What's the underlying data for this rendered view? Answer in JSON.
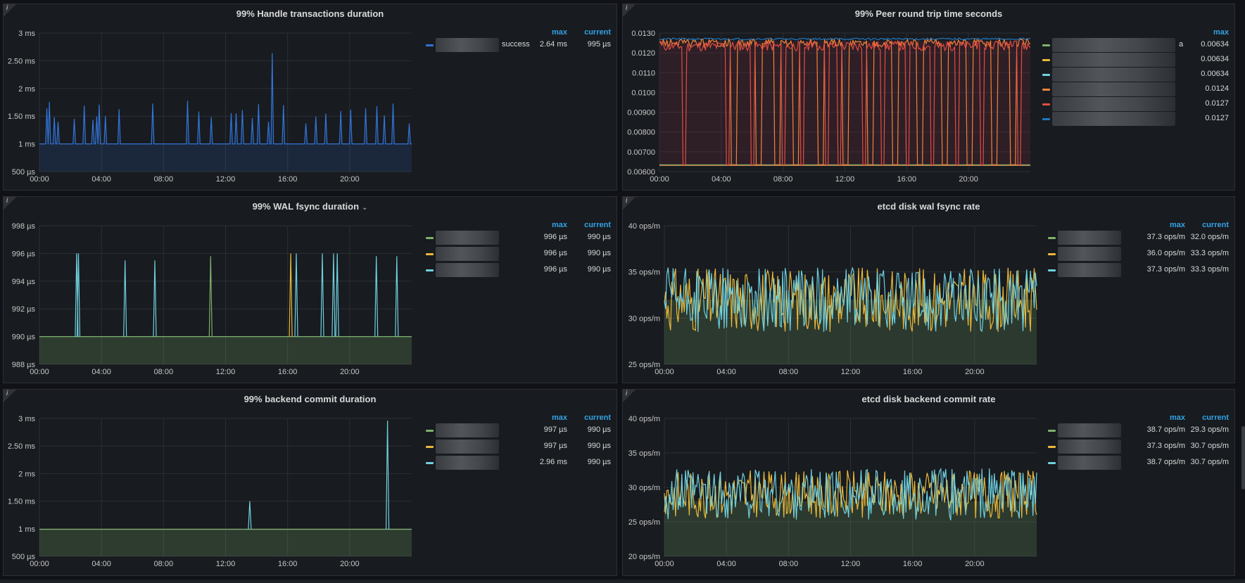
{
  "panels": [
    {
      "id": "p1",
      "title": "99% Handle transactions duration",
      "has_chevron": false,
      "box": [
        4,
        5,
        873,
        266
      ],
      "plot": [
        55,
        46,
        584,
        243
      ],
      "yticks": [
        "3 ms",
        "2.50 ms",
        "2 ms",
        "1.50 ms",
        "1 ms",
        "500 µs"
      ],
      "xticks": [
        "00:00",
        "04:00",
        "08:00",
        "12:00",
        "16:00",
        "20:00"
      ],
      "legend_headers": [
        "max",
        "current"
      ],
      "legend_rows": [
        {
          "name": "success",
          "color": "#3274d9",
          "max": "2.64 ms",
          "current": "995 µs"
        }
      ]
    },
    {
      "id": "p2",
      "title": "99% Peer round trip time seconds",
      "has_chevron": false,
      "box": [
        884,
        5,
        871,
        266
      ],
      "plot": [
        936,
        46,
        1463,
        243
      ],
      "yticks": [
        "0.0130",
        "0.0120",
        "0.0110",
        "0.0100",
        "0.00900",
        "0.00800",
        "0.00700",
        "0.00600"
      ],
      "xticks": [
        "00:00",
        "04:00",
        "08:00",
        "12:00",
        "16:00",
        "20:00"
      ],
      "legend_headers": [
        "max"
      ],
      "legend_rows": [
        {
          "name": "a",
          "color": "#7eb26d",
          "max": "0.00634"
        },
        {
          "name": "",
          "color": "#eab839",
          "max": "0.00634"
        },
        {
          "name": "",
          "color": "#6ed0e0",
          "max": "0.00634"
        },
        {
          "name": "",
          "color": "#ef843c",
          "max": "0.0124"
        },
        {
          "name": "",
          "color": "#e24d42",
          "max": "0.0127"
        },
        {
          "name": "",
          "color": "#1f78c1",
          "max": "0.0127"
        }
      ]
    },
    {
      "id": "p3",
      "title": "99% WAL fsync duration",
      "has_chevron": true,
      "box": [
        4,
        279,
        873,
        266
      ],
      "plot": [
        55,
        320,
        584,
        517
      ],
      "yticks": [
        "998 µs",
        "996 µs",
        "994 µs",
        "992 µs",
        "990 µs",
        "988 µs"
      ],
      "xticks": [
        "00:00",
        "04:00",
        "08:00",
        "12:00",
        "16:00",
        "20:00"
      ],
      "legend_headers": [
        "max",
        "current"
      ],
      "legend_rows": [
        {
          "name": "",
          "color": "#7eb26d",
          "max": "996 µs",
          "current": "990 µs"
        },
        {
          "name": "",
          "color": "#eab839",
          "max": "996 µs",
          "current": "990 µs"
        },
        {
          "name": "",
          "color": "#6ed0e0",
          "max": "996 µs",
          "current": "990 µs"
        }
      ]
    },
    {
      "id": "p4",
      "title": "etcd disk wal fsync rate",
      "has_chevron": false,
      "box": [
        884,
        279,
        871,
        266
      ],
      "plot": [
        943,
        320,
        1472,
        517
      ],
      "yticks": [
        "40 ops/m",
        "35 ops/m",
        "30 ops/m",
        "25 ops/m"
      ],
      "xticks": [
        "00:00",
        "04:00",
        "08:00",
        "12:00",
        "16:00",
        "20:00"
      ],
      "legend_headers": [
        "max",
        "current"
      ],
      "legend_rows": [
        {
          "name": "",
          "color": "#7eb26d",
          "max": "37.3 ops/m",
          "current": "32.0 ops/m"
        },
        {
          "name": "",
          "color": "#eab839",
          "max": "36.0 ops/m",
          "current": "33.3 ops/m"
        },
        {
          "name": "",
          "color": "#6ed0e0",
          "max": "37.3 ops/m",
          "current": "33.3 ops/m"
        }
      ]
    },
    {
      "id": "p5",
      "title": "99% backend commit duration",
      "has_chevron": false,
      "box": [
        4,
        553,
        873,
        266
      ],
      "plot": [
        55,
        594,
        584,
        790
      ],
      "yticks": [
        "3 ms",
        "2.50 ms",
        "2 ms",
        "1.50 ms",
        "1 ms",
        "500 µs"
      ],
      "xticks": [
        "00:00",
        "04:00",
        "08:00",
        "12:00",
        "16:00",
        "20:00"
      ],
      "legend_headers": [
        "max",
        "current"
      ],
      "legend_rows": [
        {
          "name": "",
          "color": "#7eb26d",
          "max": "997 µs",
          "current": "990 µs"
        },
        {
          "name": "",
          "color": "#eab839",
          "max": "997 µs",
          "current": "990 µs"
        },
        {
          "name": "",
          "color": "#6ed0e0",
          "max": "2.96 ms",
          "current": "990 µs"
        }
      ]
    },
    {
      "id": "p6",
      "title": "etcd disk backend commit rate",
      "has_chevron": false,
      "box": [
        884,
        553,
        871,
        266
      ],
      "plot": [
        943,
        594,
        1472,
        790
      ],
      "yticks": [
        "40 ops/m",
        "35 ops/m",
        "30 ops/m",
        "25 ops/m",
        "20 ops/m"
      ],
      "xticks": [
        "00:00",
        "04:00",
        "08:00",
        "12:00",
        "16:00",
        "20:00"
      ],
      "legend_headers": [
        "max",
        "current"
      ],
      "legend_rows": [
        {
          "name": "",
          "color": "#7eb26d",
          "max": "38.7 ops/m",
          "current": "29.3 ops/m"
        },
        {
          "name": "",
          "color": "#eab839",
          "max": "37.3 ops/m",
          "current": "30.7 ops/m"
        },
        {
          "name": "",
          "color": "#6ed0e0",
          "max": "38.7 ops/m",
          "current": "30.7 ops/m"
        }
      ]
    }
  ],
  "chart_data": [
    {
      "type": "line",
      "title": "99% Handle transactions duration",
      "x_range": [
        "00:00",
        "24:00"
      ],
      "ylim_ms": [
        0.5,
        3
      ],
      "series": [
        {
          "name": "success",
          "baseline_ms": 1.0,
          "peak_ms": 2.64,
          "spikes_ms": [
            1.6,
            1.7,
            1.5,
            1.4,
            1.7,
            1.6,
            1.5,
            1.4,
            1.4,
            1.6,
            1.7,
            1.9,
            2.64,
            1.8,
            1.7,
            1.5,
            1.6,
            1.7,
            1.6,
            1.5,
            1.9
          ]
        }
      ]
    },
    {
      "type": "line",
      "title": "99% Peer round trip time seconds",
      "x_range": [
        "00:00",
        "24:00"
      ],
      "ylim": [
        0.006,
        0.013
      ],
      "series": [
        {
          "name": "s1",
          "level": 0.0126
        },
        {
          "name": "s2",
          "level": 0.0124
        },
        {
          "name": "s3",
          "level": 0.00634
        }
      ]
    },
    {
      "type": "line",
      "title": "99% WAL fsync duration",
      "ylim_us": [
        988,
        998
      ],
      "series": [
        {
          "baseline_us": 990,
          "peak_us": 996
        }
      ]
    },
    {
      "type": "line",
      "title": "etcd disk wal fsync rate",
      "ylim": [
        25,
        40
      ],
      "series": [
        {
          "mean": 32
        },
        {
          "mean": 32
        }
      ]
    },
    {
      "type": "line",
      "title": "99% backend commit duration",
      "ylim_ms": [
        0.5,
        3
      ],
      "series": [
        {
          "baseline_ms": 0.99,
          "peaks_ms": [
            1.5,
            2.96
          ]
        }
      ]
    },
    {
      "type": "line",
      "title": "etcd disk backend commit rate",
      "ylim": [
        20,
        40
      ],
      "series": [
        {
          "mean": 29
        },
        {
          "mean": 29
        }
      ]
    }
  ]
}
